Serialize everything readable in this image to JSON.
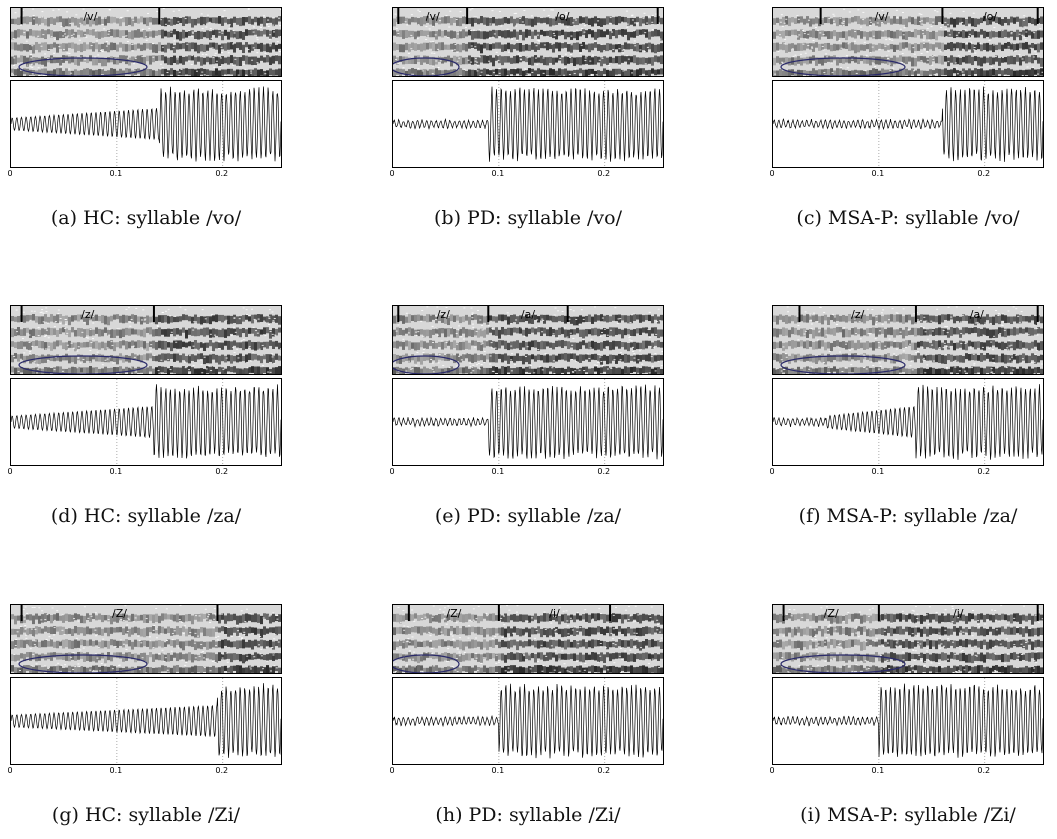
{
  "panels": [
    {
      "caption": "(a) HC: syllable /vo/",
      "labels": [
        "/v/"
      ],
      "boundaries": [
        0.01,
        0.14
      ],
      "vowel_start": 0.14,
      "voiced_onset": 0.0
    },
    {
      "caption": "(b) PD: syllable /vo/",
      "labels": [
        "/v/",
        "/o/"
      ],
      "boundaries": [
        0.005,
        0.07,
        0.25
      ],
      "vowel_start": 0.07,
      "voiced_onset": 0.09
    },
    {
      "caption": "(c) MSA-P: syllable /vo/",
      "labels": [
        "/v/",
        "/o/"
      ],
      "boundaries": [
        0.045,
        0.16,
        0.25
      ],
      "vowel_start": 0.16,
      "voiced_onset": 0.16
    },
    {
      "caption": "(d) HC: syllable /za/",
      "labels": [
        "/z/"
      ],
      "boundaries": [
        0.01,
        0.135
      ],
      "vowel_start": 0.135,
      "voiced_onset": 0.0
    },
    {
      "caption": "(e) PD: syllable /za/",
      "labels": [
        "/z/",
        "/a/"
      ],
      "boundaries": [
        0.005,
        0.09,
        0.165
      ],
      "vowel_start": 0.09,
      "voiced_onset": 0.09
    },
    {
      "caption": "(f) MSA-P: syllable /za/",
      "labels": [
        "/z/",
        "/a/"
      ],
      "boundaries": [
        0.025,
        0.135,
        0.25
      ],
      "vowel_start": 0.135,
      "voiced_onset": 0.05
    },
    {
      "caption": "(g) HC: syllable /Zi/",
      "labels": [
        "/Z/"
      ],
      "boundaries": [
        0.01,
        0.195
      ],
      "vowel_start": 0.195,
      "voiced_onset": 0.0
    },
    {
      "caption": "(h) PD: syllable /Zi/",
      "labels": [
        "/Z/",
        "/i/"
      ],
      "boundaries": [
        0.015,
        0.1,
        0.205
      ],
      "vowel_start": 0.1,
      "voiced_onset": 0.1
    },
    {
      "caption": "(i) MSA-P: syllable /Zi/",
      "labels": [
        "/Z/",
        "/i/"
      ],
      "boundaries": [
        0.01,
        0.1,
        0.25
      ],
      "vowel_start": 0.1,
      "voiced_onset": 0.1
    }
  ],
  "time_ticks": [
    "0",
    "0.1",
    "0.2"
  ]
}
